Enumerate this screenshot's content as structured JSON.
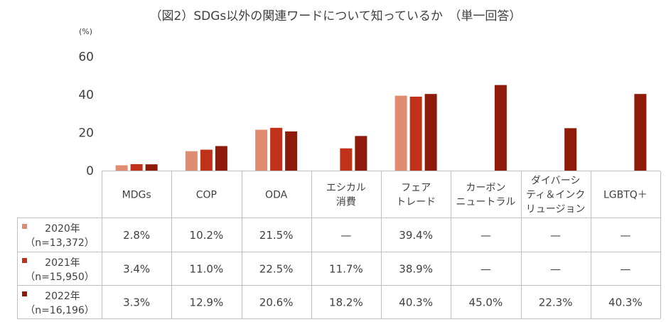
{
  "chart_data": {
    "type": "bar",
    "title": "（図2）SDGs以外の関連ワードについて知っているか　（単一回答）",
    "ylabel": "(%)",
    "ylim": [
      0,
      60
    ],
    "yticks": [
      "0",
      "20",
      "40",
      "60"
    ],
    "categories": [
      [
        "MDGs"
      ],
      [
        "COP"
      ],
      [
        "ODA"
      ],
      [
        "エシカル",
        "消費"
      ],
      [
        "フェア",
        "トレード"
      ],
      [
        "カーボン",
        "ニュートラル"
      ],
      [
        "ダイバーシ",
        "ティ＆インク",
        "リュージョン"
      ],
      [
        "LGBTQ＋"
      ]
    ],
    "series": [
      {
        "name": "2020年",
        "n": "（n=13,372）",
        "color": "#E08C72",
        "values": [
          2.8,
          10.2,
          21.5,
          null,
          39.4,
          null,
          null,
          null
        ],
        "labels": [
          "2.8%",
          "10.2%",
          "21.5%",
          "—",
          "39.4%",
          "—",
          "—",
          "—"
        ]
      },
      {
        "name": "2021年",
        "n": "（n=15,950）",
        "color": "#C0311A",
        "values": [
          3.4,
          11.0,
          22.5,
          11.7,
          38.9,
          null,
          null,
          null
        ],
        "labels": [
          "3.4%",
          "11.0%",
          "22.5%",
          "11.7%",
          "38.9%",
          "—",
          "—",
          "—"
        ]
      },
      {
        "name": "2022年",
        "n": "（n=16,196）",
        "color": "#8E1B09",
        "values": [
          3.3,
          12.9,
          20.6,
          18.2,
          40.3,
          45.0,
          22.3,
          40.3
        ],
        "labels": [
          "3.3%",
          "12.9%",
          "20.6%",
          "18.2%",
          "40.3%",
          "45.0%",
          "22.3%",
          "40.3%"
        ]
      }
    ]
  }
}
